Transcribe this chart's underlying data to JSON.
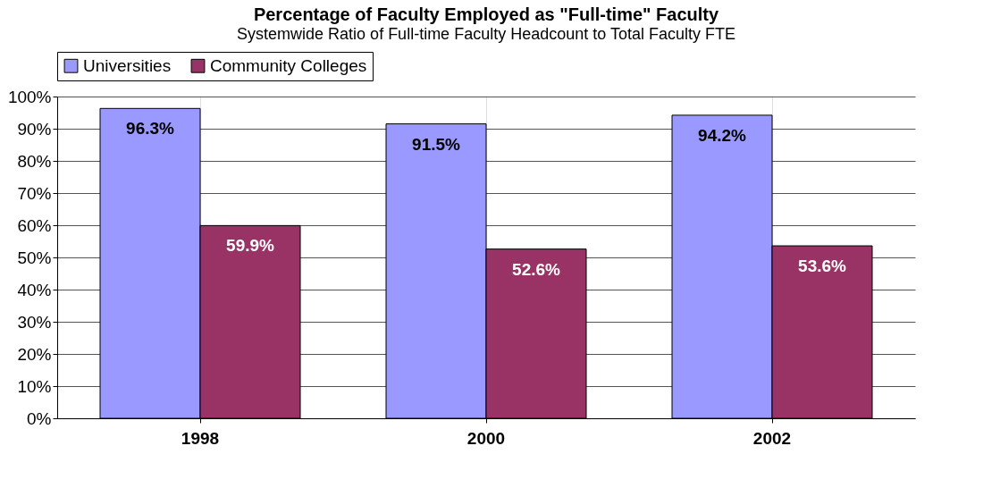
{
  "chart_data": {
    "type": "bar",
    "title": "Percentage of Faculty Employed as \"Full-time\" Faculty",
    "subtitle": "Systemwide Ratio of Full-time Faculty Headcount to Total Faculty FTE",
    "categories": [
      "1998",
      "2000",
      "2002"
    ],
    "series": [
      {
        "name": "Universities",
        "color": "#9999ff",
        "values": [
          96.3,
          91.5,
          94.2
        ],
        "value_labels": [
          "96.3%",
          "91.5%",
          "94.2%"
        ]
      },
      {
        "name": "Community Colleges",
        "color": "#993366",
        "values": [
          59.9,
          52.6,
          53.6
        ],
        "value_labels": [
          "59.9%",
          "52.6%",
          "53.6%"
        ]
      }
    ],
    "ylim": [
      0,
      100
    ],
    "yticks": [
      {
        "value": 0,
        "label": "0%"
      },
      {
        "value": 10,
        "label": "10%"
      },
      {
        "value": 20,
        "label": "20%"
      },
      {
        "value": 30,
        "label": "30%"
      },
      {
        "value": 40,
        "label": "40%"
      },
      {
        "value": 50,
        "label": "50%"
      },
      {
        "value": 60,
        "label": "60%"
      },
      {
        "value": 70,
        "label": "70%"
      },
      {
        "value": 80,
        "label": "80%"
      },
      {
        "value": 90,
        "label": "90%"
      },
      {
        "value": 100,
        "label": "100%"
      }
    ],
    "grid": true,
    "legend": "top"
  }
}
